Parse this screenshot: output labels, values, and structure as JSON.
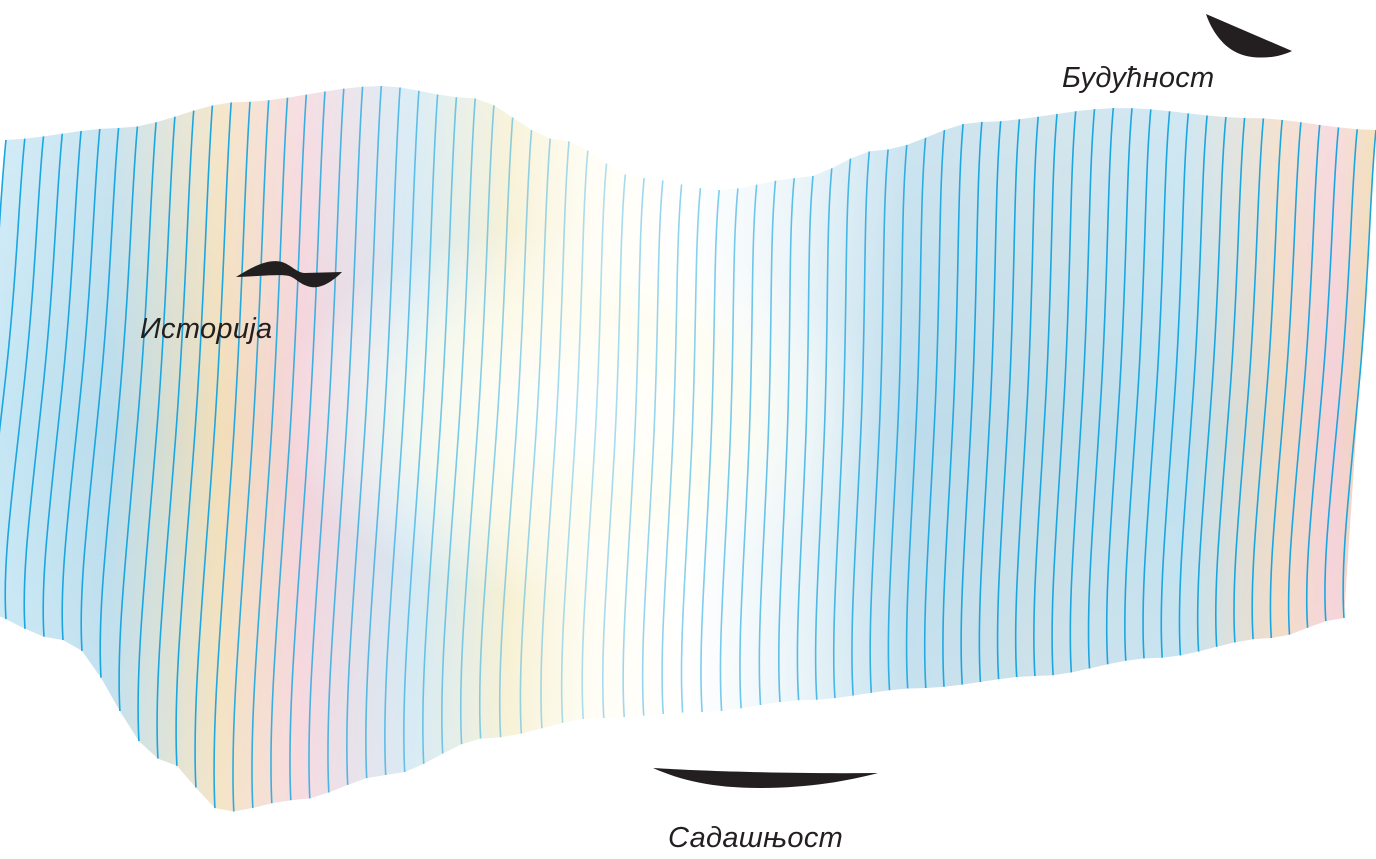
{
  "labels": {
    "history": "Историја",
    "present": "Садашњост",
    "future": "Будућност"
  },
  "colors": {
    "line": "#1ba6e0",
    "background": "#ffffff",
    "glyph": "#231f20",
    "tint_blue": "#bfe3f2",
    "tint_peach": "#f3dcb4",
    "tint_pink": "#f4cfd8",
    "tint_grey": "#c9d2d6"
  },
  "icons": [
    "wave-glyph-icon",
    "bowl-glyph-icon",
    "crescent-glyph-icon"
  ]
}
